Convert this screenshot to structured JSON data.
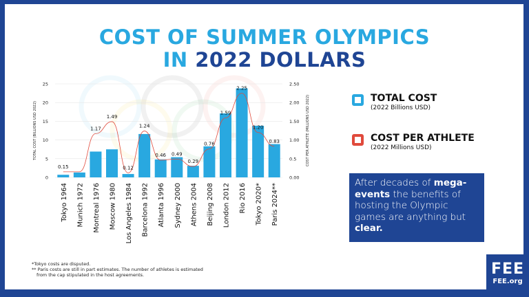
{
  "title": {
    "line1": "COST OF SUMMER OLYMPICS",
    "line2_prefix": "IN ",
    "line2_highlight": "2022 DOLLARS"
  },
  "legend": [
    {
      "label": "TOTAL COST",
      "sub": "(2022 Billions USD)",
      "color": "#29a8e0"
    },
    {
      "label": "COST PER ATHLETE",
      "sub": "(2022 Millions USD)",
      "color": "#e04a3c"
    }
  ],
  "callout": {
    "p1": "After decades of ",
    "b1": "mega-events",
    "p2": " the benefits of hosting the Olympic games are anything but ",
    "b2": "clear."
  },
  "footnotes": [
    "*Tokyo costs are disputed.",
    "** Paris costs are still in part estimates. The number of athletes is estimated",
    "from the cap stipulated in the host agreements."
  ],
  "logo": {
    "mark": "FEE",
    "site": "FEE.org"
  },
  "chart_data": {
    "type": "bar",
    "title": "Cost of Summer Olympics in 2022 Dollars",
    "categories": [
      "Tokyo 1964",
      "Munich 1972",
      "Montreal 1976",
      "Moscow 1980",
      "Los Angeles 1984",
      "Barcelona 1992",
      "Atlanta 1996",
      "Sydney 2000",
      "Athens 2004",
      "Beijing 2008",
      "London 2012",
      "Rio 2016",
      "Tokyo 2020*",
      "Paris 2024**"
    ],
    "ylabel": "TOTAL COST (BILLIONS USD 2022)",
    "y2label": "COST PER ATHLETE (MILLIONS USD 2022)",
    "ylim": [
      0,
      25
    ],
    "y2lim": [
      0,
      2.5
    ],
    "yticks": [
      "0",
      "5",
      "10",
      "15",
      "20",
      "25"
    ],
    "y2ticks": [
      "0.00",
      "0.5",
      "1.00",
      "1.50",
      "2.00",
      "2.50"
    ],
    "series": [
      {
        "name": "Total Cost",
        "type": "bar",
        "color": "#29a8e0",
        "values": [
          0.7,
          1.3,
          6.9,
          7.5,
          0.9,
          11.6,
          4.8,
          5.4,
          3.1,
          8.3,
          17.1,
          23.8,
          13.8,
          8.9
        ]
      },
      {
        "name": "Cost per Athlete",
        "type": "line",
        "axis": "right",
        "color": "#e04a3c",
        "values": [
          0.15,
          0.15,
          1.17,
          1.49,
          0.12,
          1.24,
          0.46,
          0.49,
          0.29,
          0.76,
          1.59,
          2.25,
          1.2,
          0.83
        ],
        "labels": [
          "0.15",
          "",
          "1.17",
          "1.49",
          "0.12",
          "1.24",
          "0.46",
          "0.49",
          "0.29",
          "0.76",
          "1.59",
          "2.25",
          "1.20",
          "0.83"
        ]
      }
    ],
    "grid": true
  }
}
